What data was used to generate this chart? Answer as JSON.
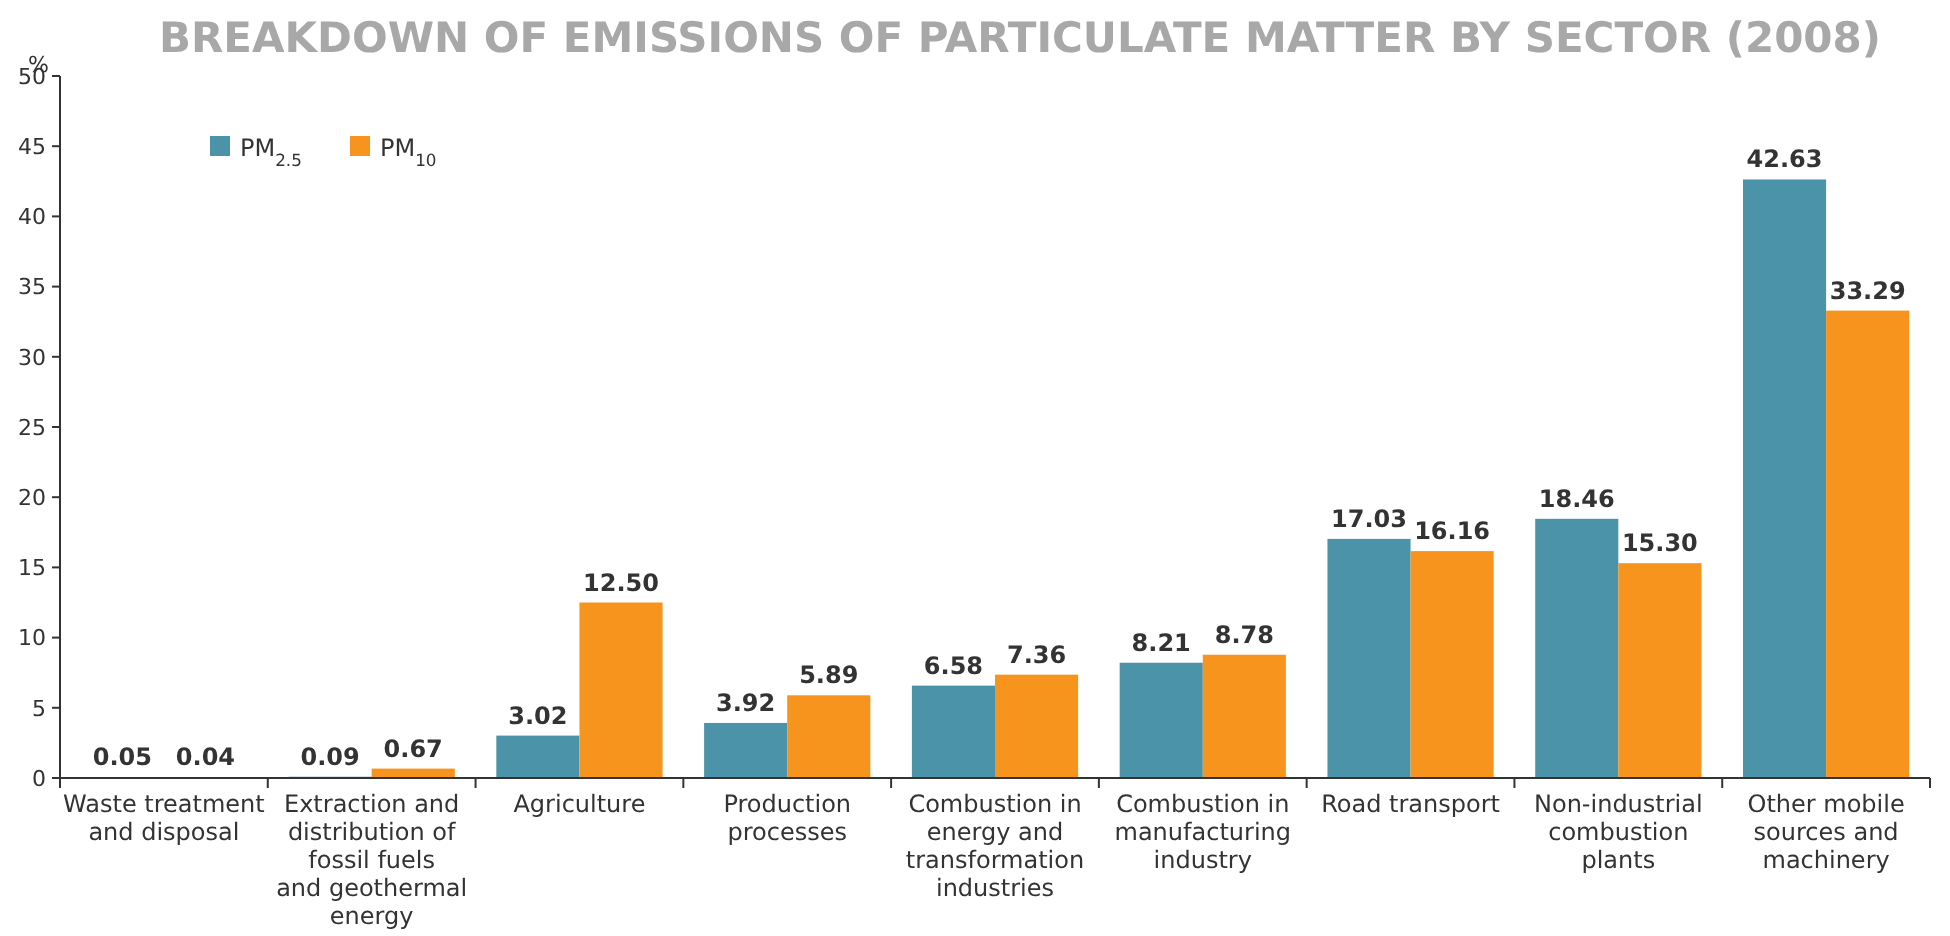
{
  "chart_data": {
    "type": "bar",
    "title": "BREAKDOWN OF EMISSIONS OF PARTICULATE MATTER BY SECTOR (2008)",
    "ylabel": "%",
    "categories": [
      "Waste treatment and disposal",
      "Extraction and distribution of fossil fuels and geothermal energy",
      "Agriculture",
      "Production processes",
      "Combustion in energy and transformation industries",
      "Combustion in manufacturing industry",
      "Road transport",
      "Non-industrial combustion plants",
      "Other mobile sources and machinery"
    ],
    "series": [
      {
        "name": "PM$_{2.5}$",
        "color": "#4a93a8",
        "values": [
          0.05,
          0.09,
          3.02,
          3.92,
          6.58,
          8.21,
          17.03,
          18.46,
          42.63
        ],
        "value_labels": [
          "0.05",
          "0.09",
          "3.02",
          "3.92",
          "6.58",
          "8.21",
          "17.03",
          "18.46",
          "42.63"
        ]
      },
      {
        "name": "PM$_{10}$",
        "color": "#f7941d",
        "values": [
          0.04,
          0.67,
          12.5,
          5.89,
          7.36,
          8.78,
          16.16,
          15.3,
          33.29
        ],
        "value_labels": [
          "0.04",
          "0.67",
          "12.50",
          "5.89",
          "7.36",
          "8.78",
          "16.16",
          "15.30",
          "33.29"
        ]
      }
    ],
    "ylim": [
      0,
      50
    ],
    "yticks": [
      0,
      5,
      10,
      15,
      20,
      25,
      30,
      35,
      40,
      45,
      50
    ],
    "grid": false,
    "legend": "top left"
  }
}
